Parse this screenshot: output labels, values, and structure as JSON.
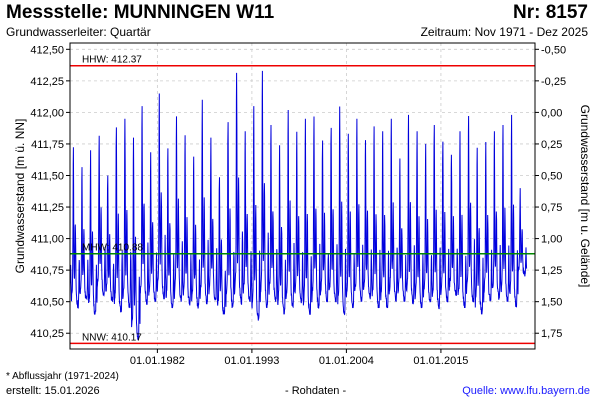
{
  "header": {
    "title": "Messstelle: MUNNINGEN W11",
    "number": "Nr: 8157",
    "aquifer": "Grundwasserleiter: Quartär",
    "period": "Zeitraum: Nov 1971 - Dez 2025"
  },
  "footer": {
    "note": "* Abflussjahr (1971-2024)",
    "created": "erstellt:  15.01.2026",
    "raw": "- Rohdaten -",
    "source": "Quelle:  www.lfu.bayern.de"
  },
  "colors": {
    "series": "#0000dd",
    "ref_extreme": "#ee0000",
    "ref_mean": "#008800",
    "grid": "#cccccc"
  },
  "chart_data": {
    "type": "line",
    "xlabel": "",
    "ylabel": "Grundwasserstand [m ü. NN]",
    "ylabel_right": "Grundwasserstand [m u. Gelände]",
    "xlim": [
      1971.83,
      2025.95
    ],
    "ylim": [
      410.125,
      412.55
    ],
    "y_ticks": [
      "412,50",
      "412,25",
      "412,00",
      "411,75",
      "411,50",
      "411,25",
      "411,00",
      "410,75",
      "410,50",
      "410,25"
    ],
    "y_tick_values": [
      412.5,
      412.25,
      412.0,
      411.75,
      411.5,
      411.25,
      411.0,
      410.75,
      410.5,
      410.25
    ],
    "right_ticks": [
      "-0,50",
      "-0,25",
      "0,00",
      "0,25",
      "0,50",
      "0,75",
      "1,00",
      "1,25",
      "1,50",
      "1,75"
    ],
    "right_tick_values": [
      -0.5,
      -0.25,
      0.0,
      0.25,
      0.5,
      0.75,
      1.0,
      1.25,
      1.5,
      1.75
    ],
    "ground_level": 412.0,
    "x_ticks": [
      "01.01.1982",
      "01.01.1993",
      "01.01.2004",
      "01.01.2015"
    ],
    "x_tick_values": [
      1982.0,
      1993.0,
      2004.0,
      2015.0
    ],
    "grid": true,
    "reference_lines": [
      {
        "label": "HHW: 412.37",
        "value": 412.37,
        "kind": "extreme"
      },
      {
        "label": "MHW: 410.88",
        "value": 410.88,
        "kind": "mean"
      },
      {
        "label": "NNW: 410.17",
        "value": 410.17,
        "kind": "extreme"
      }
    ],
    "annual_peaks": [
      411.4,
      411.75,
      411.6,
      411.7,
      411.85,
      411.5,
      411.9,
      411.95,
      411.8,
      412.05,
      411.7,
      412.15,
      411.75,
      412.0,
      411.85,
      411.65,
      412.1,
      411.8,
      411.5,
      411.95,
      412.35,
      411.85,
      412.05,
      412.37,
      411.9,
      411.75,
      412.05,
      411.85,
      411.95,
      412.0,
      411.8,
      411.9,
      412.05,
      411.85,
      411.95,
      411.8,
      411.9,
      411.85,
      411.95,
      411.65,
      412.0,
      411.85,
      411.75,
      411.9,
      411.8,
      411.7,
      411.85,
      412.0,
      411.75,
      411.8,
      411.85,
      411.9,
      412.0,
      411.4
    ],
    "annual_troughs": [
      410.55,
      410.45,
      410.5,
      410.4,
      410.55,
      410.5,
      410.42,
      410.45,
      410.2,
      410.48,
      410.5,
      410.52,
      410.45,
      410.5,
      410.47,
      410.45,
      410.48,
      410.5,
      410.4,
      410.45,
      410.48,
      410.5,
      410.35,
      410.45,
      410.5,
      410.4,
      410.45,
      410.48,
      410.4,
      410.45,
      410.5,
      410.5,
      410.4,
      410.45,
      410.5,
      410.52,
      410.45,
      410.45,
      410.5,
      410.5,
      410.48,
      410.45,
      410.5,
      410.45,
      410.5,
      410.55,
      410.45,
      410.5,
      410.4,
      410.5,
      410.52,
      410.5,
      410.45,
      410.7
    ]
  }
}
